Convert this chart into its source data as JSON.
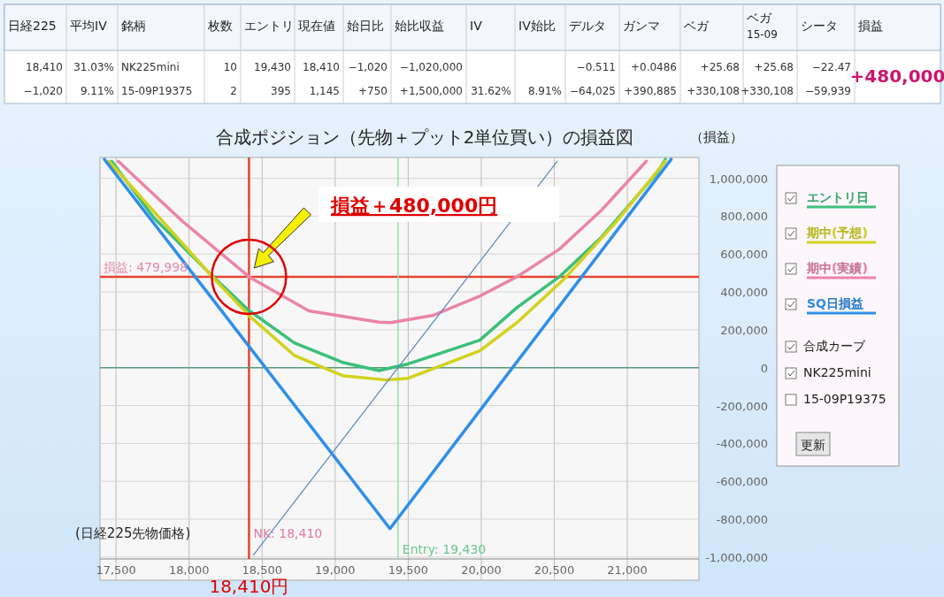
{
  "chart_data": [
    {
      "type": "other",
      "categories": [
        "日経225",
        "平均IV",
        "銘柄",
        "枚数",
        "エントリ",
        "現在値",
        "始日比",
        "始比収益",
        "IV",
        "IV始比",
        "デルタ",
        "ガンマ",
        "ベガ",
        "ベガ$_{15-09}$",
        "シータ",
        "損益"
      ],
      "cell_labels": [
        [
          "18,410",
          "31.03%",
          "NK225mini",
          "10",
          "19,430",
          "18,410",
          "−1,020",
          "−1,020,000",
          null,
          null,
          "−0.511",
          "+0.0486",
          "+25.68",
          "+25.68",
          "−22.47",
          "+480,000"
        ],
        [
          "−1,020",
          "9.11%",
          "15-09P19375",
          "2",
          "395",
          "1,145",
          "+750",
          "+1,500,000",
          "31.62%",
          "8.91%",
          "−64,025",
          "+390,885",
          "+330,108",
          "+330,108",
          "−59,939",
          null
        ]
      ]
    },
    {
      "type": "line",
      "title": "合成ポジション（先物＋プット2単位買い）の損益図",
      "ylabel": "（損益）",
      "xlabel": "(日経225先物価格)",
      "xlim": [
        17390,
        21490
      ],
      "xticks": [
        {
          "value": 17500,
          "label": "17,500"
        },
        {
          "value": 18000,
          "label": "18,000"
        },
        {
          "value": 18500,
          "label": "18,500"
        },
        {
          "value": 19000,
          "label": "19,000"
        },
        {
          "value": 19500,
          "label": "19,500"
        },
        {
          "value": 20000,
          "label": "20,000"
        },
        {
          "value": 20500,
          "label": "20,500"
        },
        {
          "value": 21000,
          "label": "21,000"
        }
      ],
      "ylim": [
        -1010000,
        1110000
      ],
      "yticks": [
        {
          "value": -1000000,
          "label": "-1,000,000"
        },
        {
          "value": -800000,
          "label": "-800,000"
        },
        {
          "value": -600000,
          "label": "-600,000"
        },
        {
          "value": -400000,
          "label": "-400,000"
        },
        {
          "value": -200000,
          "label": "-200,000"
        },
        0,
        {
          "value": 200000,
          "label": "200,000"
        },
        {
          "value": 400000,
          "label": "400,000"
        },
        {
          "value": 600000,
          "label": "600,000"
        },
        {
          "value": 800000,
          "label": "800,000"
        },
        {
          "value": 1000000,
          "label": "1,000,000"
        }
      ],
      "grid": true,
      "legend": "right",
      "series": [
        {
          "name": "エントリ日",
          "color": "#3cbf7a",
          "x": [
            17470,
            17760,
            18165,
            18400,
            18720,
            19050,
            19300,
            19500,
            19990,
            20245,
            20535,
            20824,
            21205,
            21260
          ],
          "values": [
            1090000,
            790000,
            480000,
            308000,
            131000,
            28000,
            -15000,
            20000,
            145000,
            318000,
            480000,
            690000,
            1030000,
            1100000
          ]
        },
        {
          "name": "期中(予想)",
          "color": "#d2d21e",
          "x": [
            17450,
            18165,
            18410,
            18720,
            19050,
            19350,
            19500,
            19990,
            20245,
            20570,
            20920,
            21260
          ],
          "values": [
            1090000,
            475000,
            275000,
            65000,
            -42000,
            -65000,
            -56000,
            89000,
            238000,
            470000,
            766000,
            1090000
          ]
        },
        {
          "name": "期中(実績)",
          "color": "#ea84a8",
          "x": [
            17515,
            17950,
            18410,
            18820,
            19300,
            19380,
            19665,
            19990,
            20245,
            20535,
            20824,
            21130
          ],
          "values": [
            1090000,
            776000,
            480000,
            300000,
            240000,
            238000,
            275000,
            378000,
            480000,
            626000,
            832000,
            1090000
          ]
        },
        {
          "name": "SQ日損益",
          "color": "#2f8fe8",
          "x": [
            17420,
            19375,
            21300
          ],
          "values": [
            1100000,
            -850000,
            1100000
          ]
        },
        {
          "color": "#5a88bd",
          "x": [
            18440,
            20520
          ],
          "values": [
            -990000,
            1090000
          ]
        }
      ],
      "ref_lines": [
        {
          "axis": "y",
          "value": 479998,
          "label": "損益: 479,998",
          "color": "#e8432d"
        },
        {
          "axis": "x",
          "value": 18410,
          "label": "NK: 18,410",
          "color": "#e8432d"
        },
        {
          "axis": "x",
          "value": 19430,
          "label": "Entry: 19,430",
          "color": "#9ad9b0"
        },
        {
          "axis": "y",
          "value": 0,
          "color": "#5a9a78"
        }
      ],
      "annotations": [
        "損益＋480,000円",
        "18,410円",
        "合成カーブ",
        "NK225mini",
        "15-09P19375",
        "更新"
      ]
    }
  ]
}
